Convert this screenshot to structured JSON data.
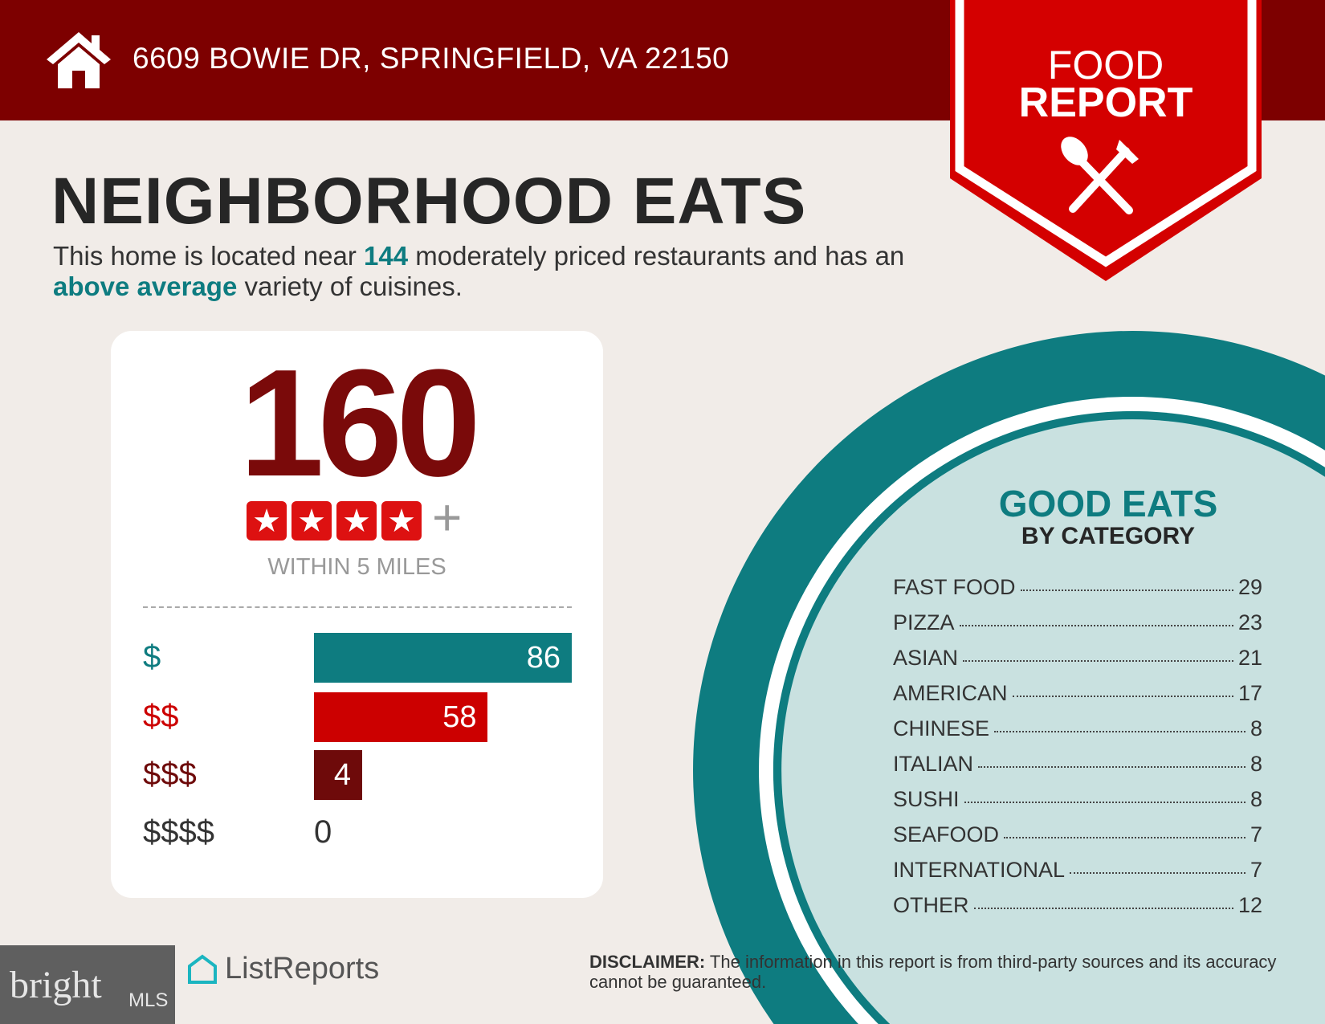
{
  "header": {
    "address": "6609 BOWIE DR, SPRINGFIELD, VA 22150"
  },
  "banner": {
    "line1": "FOOD",
    "line2": "REPORT"
  },
  "title": "NEIGHBORHOOD EATS",
  "subtitle": {
    "p1": "This home is located near ",
    "count": "144",
    "p2": " moderately priced restaurants and has an ",
    "variety": "above average",
    "p3": " variety of cuisines."
  },
  "summary": {
    "total": "160",
    "stars": 4,
    "plus": "+",
    "within": "WITHIN 5 MILES"
  },
  "price_levels": [
    {
      "label": "$",
      "value": 86,
      "color": "#0e7c80"
    },
    {
      "label": "$$",
      "value": 58,
      "color": "#cc0000"
    },
    {
      "label": "$$$",
      "value": 4,
      "color": "#6e0a0a"
    },
    {
      "label": "$$$$",
      "value": 0,
      "color": "#333333"
    }
  ],
  "categories": {
    "title": "GOOD EATS",
    "subtitle": "BY CATEGORY",
    "items": [
      {
        "name": "FAST FOOD",
        "count": "29"
      },
      {
        "name": "PIZZA",
        "count": "23"
      },
      {
        "name": "ASIAN",
        "count": "21"
      },
      {
        "name": "AMERICAN",
        "count": "17"
      },
      {
        "name": "CHINESE",
        "count": "8"
      },
      {
        "name": "ITALIAN",
        "count": "8"
      },
      {
        "name": "SUSHI",
        "count": "8"
      },
      {
        "name": "SEAFOOD",
        "count": "7"
      },
      {
        "name": "INTERNATIONAL",
        "count": "7"
      },
      {
        "name": "OTHER",
        "count": "12"
      }
    ]
  },
  "disclaimer": {
    "label": "DISCLAIMER:",
    "text": " The information in this report is from third-party sources and its accuracy cannot be guaranteed."
  },
  "logos": {
    "listreports": "ListReports",
    "bright": "bright",
    "mls": "MLS"
  },
  "colors": {
    "header": "#7d0000",
    "teal": "#0e7c80",
    "red": "#cc0000",
    "dark_red": "#7a0a0a",
    "background": "#f1ece8"
  }
}
